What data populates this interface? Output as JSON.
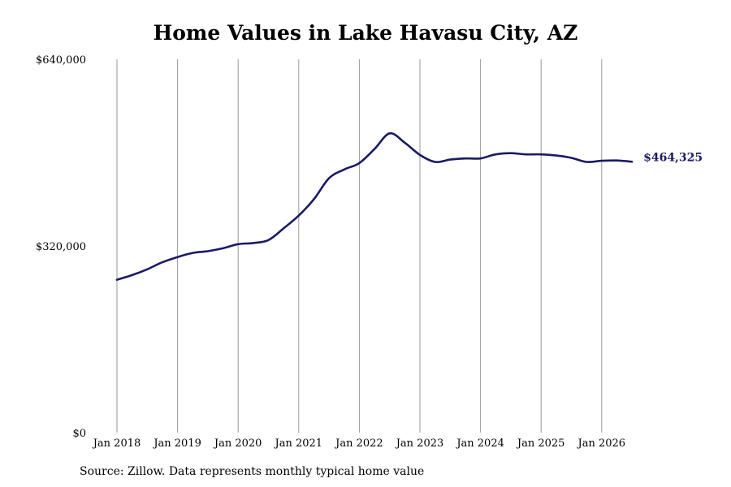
{
  "chart_data": {
    "type": "line",
    "title": "Home Values in Lake Havasu City, AZ",
    "xlabel": "",
    "ylabel": "",
    "x_ticks": [
      "Jan 2018",
      "Jan 2019",
      "Jan 2020",
      "Jan 2021",
      "Jan 2022",
      "Jan 2023",
      "Jan 2024",
      "Jan 2025",
      "Jan 2026"
    ],
    "y_ticks": [
      "$0",
      "$320,000",
      "$640,000"
    ],
    "y_tick_values": [
      0,
      320000,
      640000
    ],
    "ylim": [
      0,
      640000
    ],
    "xlim": [
      "2017-12",
      "2026-12"
    ],
    "grid": "vertical",
    "line_color": "#1a1a66",
    "end_label": "$464,325",
    "series": [
      {
        "values": [
          {
            "x": "2018-01",
            "y": 262000
          },
          {
            "x": "2018-04",
            "y": 270000
          },
          {
            "x": "2018-07",
            "y": 280000
          },
          {
            "x": "2018-10",
            "y": 292000
          },
          {
            "x": "2019-01",
            "y": 301000
          },
          {
            "x": "2019-04",
            "y": 308000
          },
          {
            "x": "2019-07",
            "y": 311000
          },
          {
            "x": "2019-10",
            "y": 316000
          },
          {
            "x": "2020-01",
            "y": 323000
          },
          {
            "x": "2020-04",
            "y": 325000
          },
          {
            "x": "2020-07",
            "y": 330000
          },
          {
            "x": "2020-10",
            "y": 350000
          },
          {
            "x": "2021-01",
            "y": 372000
          },
          {
            "x": "2021-04",
            "y": 400000
          },
          {
            "x": "2021-07",
            "y": 436000
          },
          {
            "x": "2021-10",
            "y": 451000
          },
          {
            "x": "2022-01",
            "y": 462000
          },
          {
            "x": "2022-04",
            "y": 486000
          },
          {
            "x": "2022-07",
            "y": 513000
          },
          {
            "x": "2022-10",
            "y": 497000
          },
          {
            "x": "2023-01",
            "y": 476000
          },
          {
            "x": "2023-04",
            "y": 464000
          },
          {
            "x": "2023-07",
            "y": 468000
          },
          {
            "x": "2023-10",
            "y": 470000
          },
          {
            "x": "2024-01",
            "y": 470000
          },
          {
            "x": "2024-04",
            "y": 477000
          },
          {
            "x": "2024-07",
            "y": 479000
          },
          {
            "x": "2024-10",
            "y": 477000
          },
          {
            "x": "2025-01",
            "y": 477000
          },
          {
            "x": "2025-04",
            "y": 475000
          },
          {
            "x": "2025-07",
            "y": 471000
          },
          {
            "x": "2025-10",
            "y": 464000
          },
          {
            "x": "2026-01",
            "y": 466000
          },
          {
            "x": "2026-04",
            "y": 466500
          },
          {
            "x": "2026-07",
            "y": 464325
          }
        ]
      }
    ]
  },
  "source_note": "Source: Zillow. Data represents monthly typical home value"
}
